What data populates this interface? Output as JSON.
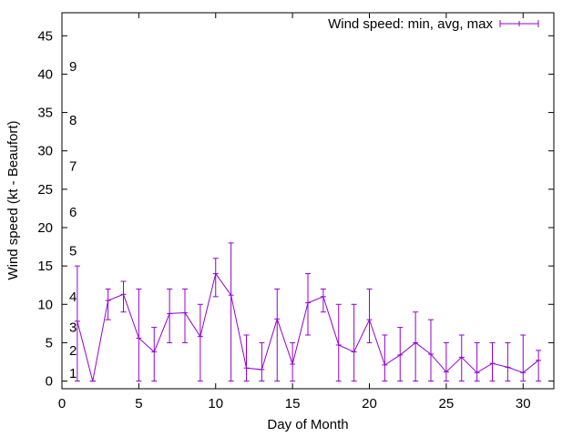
{
  "chart_data": {
    "type": "line",
    "xlabel": "Day of Month",
    "ylabel": "Wind speed (kt - Beaufort)",
    "xlim": [
      0,
      32
    ],
    "ylim": [
      -1,
      48
    ],
    "xticks": [
      0,
      5,
      10,
      15,
      20,
      25,
      30
    ],
    "yticks": [
      0,
      5,
      10,
      15,
      20,
      25,
      30,
      35,
      40,
      45
    ],
    "grid": false,
    "legend_position": "top-right",
    "series": [
      {
        "name": "Wind speed: min, avg, max",
        "color": "#9400d3",
        "points": [
          {
            "x": 1,
            "y": 7.8,
            "min": 0,
            "max": 15
          },
          {
            "x": 2,
            "y": 0,
            "min": 0,
            "max": 0
          },
          {
            "x": 3,
            "y": 10.5,
            "min": 8,
            "max": 12
          },
          {
            "x": 4,
            "y": 11.3,
            "min": 9,
            "max": 13
          },
          {
            "x": 5,
            "y": 5.6,
            "min": 0,
            "max": 12
          },
          {
            "x": 6,
            "y": 3.8,
            "min": 0,
            "max": 7
          },
          {
            "x": 7,
            "y": 8.8,
            "min": 5,
            "max": 12
          },
          {
            "x": 8,
            "y": 8.9,
            "min": 5,
            "max": 12
          },
          {
            "x": 9,
            "y": 5.8,
            "min": 0,
            "max": 10
          },
          {
            "x": 10,
            "y": 14,
            "min": 11,
            "max": 16
          },
          {
            "x": 11,
            "y": 11.2,
            "min": 0,
            "max": 18
          },
          {
            "x": 12,
            "y": 1.7,
            "min": 0,
            "max": 6
          },
          {
            "x": 13,
            "y": 1.5,
            "min": 0,
            "max": 5
          },
          {
            "x": 14,
            "y": 8.1,
            "min": 0,
            "max": 12
          },
          {
            "x": 15,
            "y": 2.2,
            "min": 0,
            "max": 5
          },
          {
            "x": 16,
            "y": 10.2,
            "min": 6,
            "max": 14
          },
          {
            "x": 17,
            "y": 11,
            "min": 9,
            "max": 12
          },
          {
            "x": 18,
            "y": 4.7,
            "min": 0,
            "max": 10
          },
          {
            "x": 19,
            "y": 3.8,
            "min": 0,
            "max": 10
          },
          {
            "x": 20,
            "y": 8,
            "min": 5,
            "max": 12
          },
          {
            "x": 21,
            "y": 2.1,
            "min": 0,
            "max": 6
          },
          {
            "x": 22,
            "y": 3.4,
            "min": 0,
            "max": 7
          },
          {
            "x": 23,
            "y": 5,
            "min": 0,
            "max": 9
          },
          {
            "x": 24,
            "y": 3.5,
            "min": 0,
            "max": 8
          },
          {
            "x": 25,
            "y": 1.2,
            "min": 0,
            "max": 5
          },
          {
            "x": 26,
            "y": 3.1,
            "min": 0,
            "max": 6
          },
          {
            "x": 27,
            "y": 1.1,
            "min": 0,
            "max": 5
          },
          {
            "x": 28,
            "y": 2.3,
            "min": 0,
            "max": 5
          },
          {
            "x": 29,
            "y": 1.8,
            "min": 0,
            "max": 5
          },
          {
            "x": 30,
            "y": 1.1,
            "min": 0,
            "max": 6
          },
          {
            "x": 31,
            "y": 2.7,
            "min": 0,
            "max": 4
          }
        ]
      }
    ],
    "beaufort_labels": [
      {
        "label": "1",
        "y": 1
      },
      {
        "label": "2",
        "y": 4
      },
      {
        "label": "3",
        "y": 7
      },
      {
        "label": "4",
        "y": 11
      },
      {
        "label": "5",
        "y": 17
      },
      {
        "label": "6",
        "y": 22
      },
      {
        "label": "7",
        "y": 28
      },
      {
        "label": "8",
        "y": 34
      },
      {
        "label": "9",
        "y": 41
      }
    ]
  }
}
